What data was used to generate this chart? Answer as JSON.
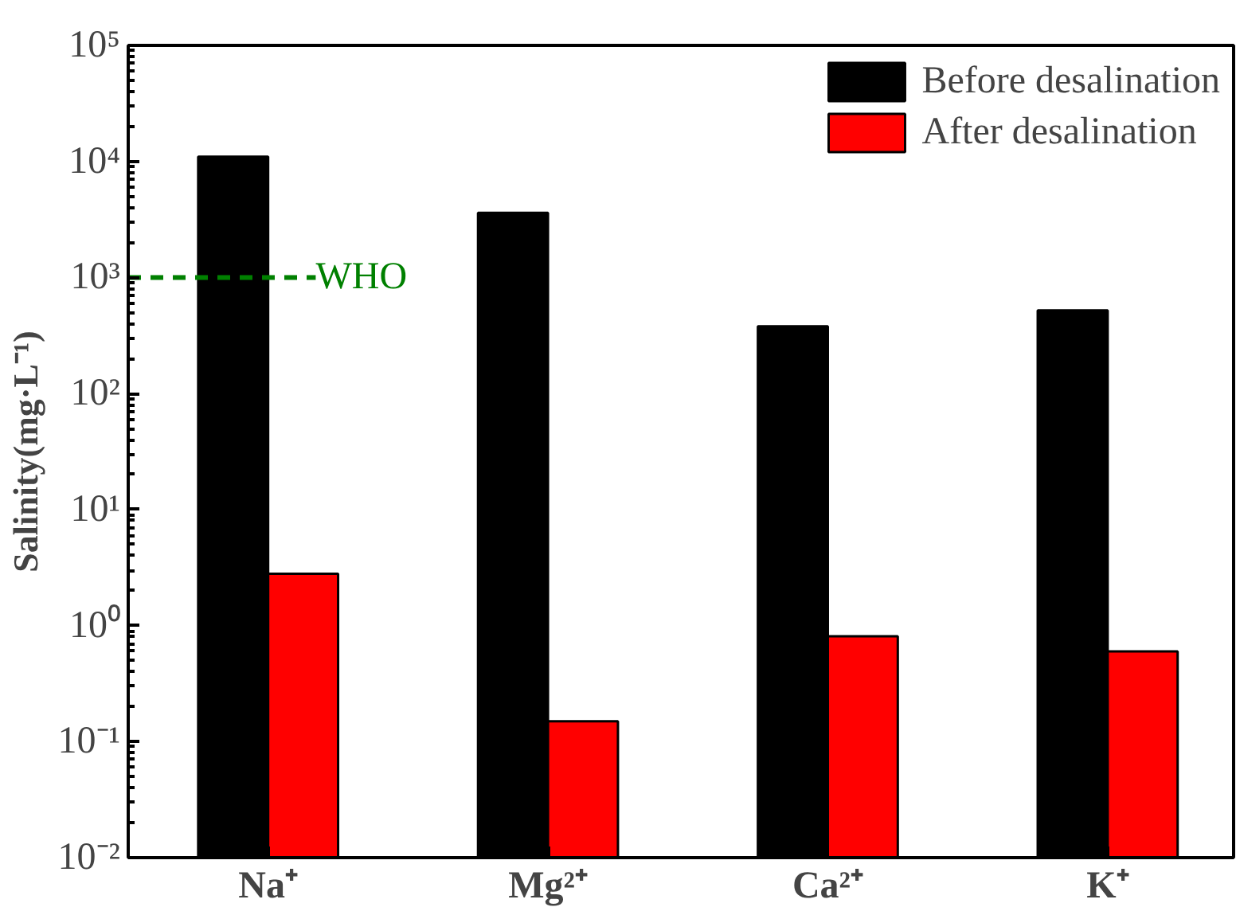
{
  "chart_data": {
    "type": "bar",
    "ylabel": "Salinity(mg·L⁻¹)",
    "log": "y",
    "categories": [
      "Na⁺",
      "Mg²⁺",
      "Ca²⁺",
      "K⁺"
    ],
    "series": [
      {
        "name": "Before desalination",
        "color": "#000000",
        "values": [
          11000,
          3600,
          380,
          520
        ]
      },
      {
        "name": "After desalination",
        "color": "#ff0000",
        "values": [
          2.8,
          0.15,
          0.81,
          0.6
        ]
      }
    ],
    "ylim": [
      0.01,
      100000
    ],
    "yticks": [
      {
        "value": 0.01,
        "label": "10⁻²"
      },
      {
        "value": 0.1,
        "label": "10⁻¹"
      },
      {
        "value": 1,
        "label": "10⁰"
      },
      {
        "value": 10,
        "label": "10¹"
      },
      {
        "value": 100,
        "label": "10²"
      },
      {
        "value": 1000,
        "label": "10³"
      },
      {
        "value": 10000,
        "label": "10⁴"
      },
      {
        "value": 100000,
        "label": "10⁵"
      }
    ],
    "ref_lines": [
      {
        "axis": "y",
        "value": 1000,
        "label": "WHO",
        "color": "#008000",
        "line_style": "dashed"
      }
    ],
    "legend": "top right",
    "grid": false
  }
}
